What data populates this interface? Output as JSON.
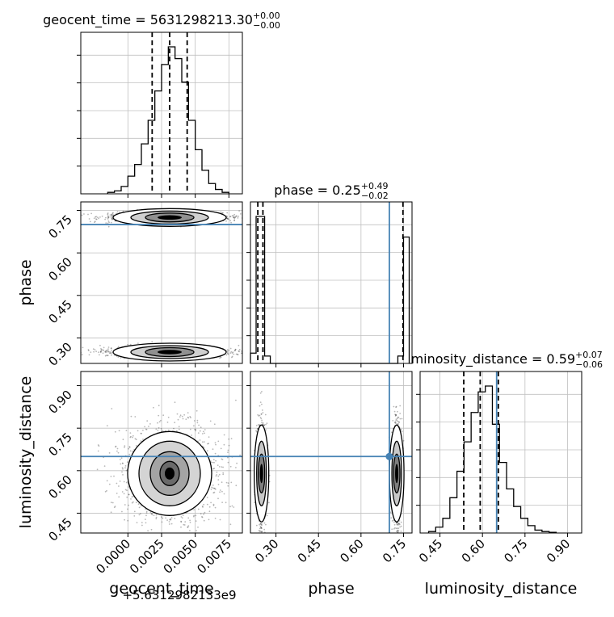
{
  "chart_data": {
    "type": "corner",
    "parameters": [
      "geocent_time",
      "phase",
      "luminosity_distance"
    ],
    "titles": {
      "geocent_time": {
        "prefix": "geocent_time = ",
        "median": "5631298213.30",
        "plus": "+0.00",
        "minus": "−0.00"
      },
      "phase": {
        "prefix": "phase = ",
        "median": "0.25",
        "plus": "+0.49",
        "minus": "−0.02"
      },
      "luminosity_distance": {
        "prefix": "luminosity_distance = ",
        "median": "0.59",
        "plus": "+0.07",
        "minus": "−0.06"
      }
    },
    "axis_labels": {
      "geocent_time": "geocent_time",
      "phase": "phase",
      "luminosity_distance": "luminosity_distance"
    },
    "offset_text": "+5.6312982133e9",
    "ranges": {
      "geocent_time": [
        -0.0035,
        0.0085
      ],
      "phase": [
        0.21,
        0.78
      ],
      "luminosity_distance": [
        0.38,
        0.95
      ]
    },
    "ticks": {
      "geocent_time": [
        0.0,
        0.0025,
        0.005,
        0.0075
      ],
      "phase": [
        0.3,
        0.45,
        0.6,
        0.75
      ],
      "luminosity_distance": [
        0.45,
        0.6,
        0.75,
        0.9
      ]
    },
    "tick_labels": {
      "geocent_time": [
        "0.0000",
        "0.0025",
        "0.0050",
        "0.0075"
      ],
      "phase": [
        "0.30",
        "0.45",
        "0.60",
        "0.75"
      ],
      "luminosity_distance": [
        "0.45",
        "0.60",
        "0.75",
        "0.90"
      ]
    },
    "quantiles": {
      "geocent_time": [
        0.0018,
        0.0031,
        0.0044
      ],
      "phase": [
        0.236,
        0.254,
        0.748
      ],
      "luminosity_distance": [
        0.534,
        0.592,
        0.656
      ]
    },
    "truths": {
      "geocent_time": null,
      "phase": 0.7,
      "luminosity_distance": 0.65
    },
    "histograms": {
      "geocent_time": {
        "edges": [
          -0.0015,
          -0.001,
          -0.0005,
          0.0,
          0.0005,
          0.001,
          0.0015,
          0.002,
          0.0025,
          0.003,
          0.0035,
          0.004,
          0.0045,
          0.005,
          0.0055,
          0.006,
          0.0065,
          0.007,
          0.0075
        ],
        "counts": [
          0.01,
          0.02,
          0.05,
          0.12,
          0.2,
          0.34,
          0.5,
          0.7,
          0.88,
          1.0,
          0.92,
          0.76,
          0.5,
          0.3,
          0.16,
          0.07,
          0.03,
          0.01
        ]
      },
      "phase": {
        "edges": [
          0.21,
          0.23,
          0.26,
          0.28,
          0.73,
          0.75,
          0.77
        ],
        "counts": [
          0.07,
          1.0,
          0.05,
          0.0,
          0.05,
          0.86
        ]
      },
      "luminosity_distance": {
        "edges": [
          0.41,
          0.435,
          0.46,
          0.485,
          0.51,
          0.535,
          0.56,
          0.585,
          0.61,
          0.635,
          0.66,
          0.685,
          0.71,
          0.735,
          0.76,
          0.785,
          0.81,
          0.835,
          0.86
        ],
        "counts": [
          0.01,
          0.04,
          0.1,
          0.24,
          0.42,
          0.62,
          0.82,
          0.96,
          1.0,
          0.74,
          0.48,
          0.3,
          0.18,
          0.1,
          0.05,
          0.02,
          0.01,
          0.005
        ]
      }
    },
    "scatter_centers": {
      "phase_vs_geocent_time": [
        [
          0.0031,
          0.25
        ],
        [
          0.0031,
          0.725
        ]
      ],
      "luminosity_distance_vs_geocent_time": [
        [
          0.0031,
          0.59
        ]
      ],
      "luminosity_distance_vs_phase": [
        [
          0.249,
          0.59
        ],
        [
          0.726,
          0.59
        ]
      ]
    },
    "colors": {
      "hist": "#000000",
      "truth": "#4682b4",
      "grid": "#c0c0c0",
      "quantile": "#000000"
    }
  }
}
